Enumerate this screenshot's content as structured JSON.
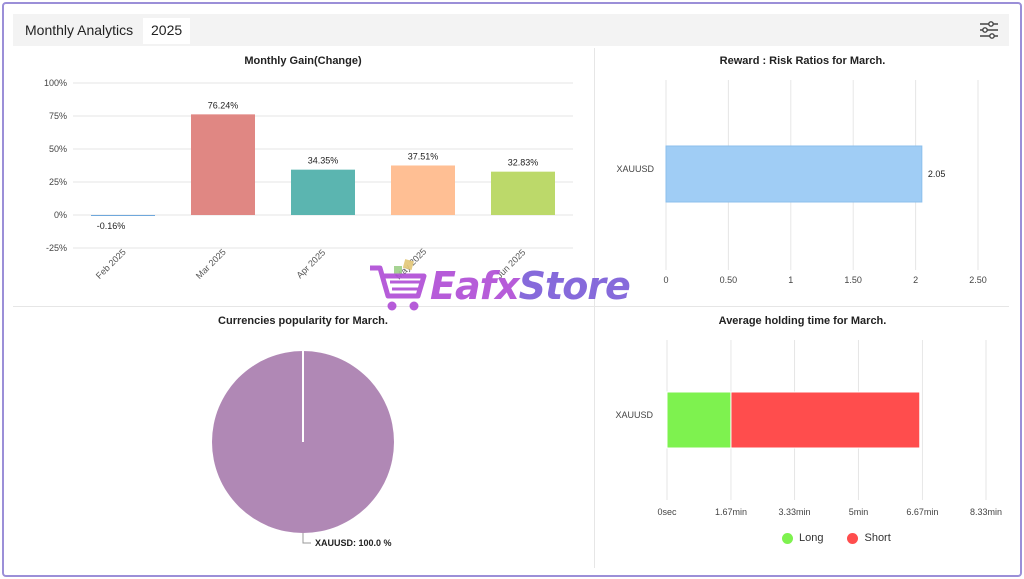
{
  "header": {
    "title": "Monthly Analytics",
    "year_tab": "2025"
  },
  "watermark": {
    "part1": "Eafx",
    "part2": "Store"
  },
  "chart_data": [
    {
      "id": "monthly-gain",
      "type": "bar",
      "title": "Monthly Gain(Change)",
      "categories": [
        "Feb 2025",
        "Mar 2025",
        "Apr 2025",
        "May 2025",
        "Jun 2025"
      ],
      "values": [
        -0.16,
        76.24,
        34.35,
        37.51,
        32.83
      ],
      "data_labels": [
        "-0.16%",
        "76.24%",
        "34.35%",
        "37.51%",
        "32.83%"
      ],
      "colors": [
        "#6fa8dc",
        "#e08783",
        "#5bb5b0",
        "#ffbf94",
        "#bcd96a"
      ],
      "yticks": [
        "100%",
        "75%",
        "50%",
        "25%",
        "0%",
        "-25%"
      ],
      "ytick_values": [
        100,
        75,
        50,
        25,
        0,
        -25
      ],
      "ylim": [
        -25,
        100
      ],
      "grid": true
    },
    {
      "id": "reward-risk",
      "type": "bar",
      "orientation": "horizontal",
      "title": "Reward : Risk Ratios for March.",
      "categories": [
        "XAUUSD"
      ],
      "values": [
        2.05
      ],
      "data_labels": [
        "2.05"
      ],
      "colors": [
        "#a0cdf5"
      ],
      "xticks": [
        "0",
        "0.50",
        "1",
        "1.50",
        "2",
        "2.50"
      ],
      "xtick_values": [
        0,
        0.5,
        1,
        1.5,
        2,
        2.5
      ],
      "xlim": [
        0,
        2.5
      ],
      "grid": true
    },
    {
      "id": "currencies-popularity",
      "type": "pie",
      "title": "Currencies popularity for March.",
      "slices": [
        {
          "label": "XAUUSD",
          "value": 100.0,
          "color": "#b088b5"
        }
      ],
      "data_label": "XAUUSD: 100.0 %"
    },
    {
      "id": "holding-time",
      "type": "bar",
      "orientation": "horizontal",
      "stacked": true,
      "title": "Average holding time for March.",
      "categories": [
        "XAUUSD"
      ],
      "series": [
        {
          "name": "Long",
          "values": [
            1.67
          ],
          "color": "#7ef24f"
        },
        {
          "name": "Short",
          "values": [
            4.93
          ],
          "color": "#ff4d4d"
        }
      ],
      "xticks": [
        "0sec",
        "1.67min",
        "3.33min",
        "5min",
        "6.67min",
        "8.33min"
      ],
      "xtick_values": [
        0,
        1.67,
        3.33,
        5,
        6.67,
        8.33
      ],
      "xlim": [
        0,
        8.33
      ],
      "legend": "bottom-center",
      "grid": true
    }
  ]
}
